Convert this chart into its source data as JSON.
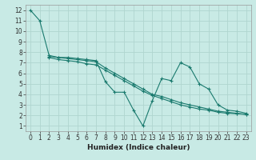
{
  "bg_color": "#c8eae5",
  "grid_color": "#b0d5cf",
  "line_color": "#1a7a6e",
  "line1": {
    "x": [
      0,
      1,
      2,
      3,
      4,
      5,
      6,
      7,
      8,
      9,
      10,
      11,
      12,
      13,
      14,
      15,
      16,
      17,
      18,
      19,
      20,
      21,
      22,
      23
    ],
    "y": [
      12,
      11,
      7.7,
      7.5,
      7.5,
      7.4,
      7.3,
      7.2,
      5.2,
      4.2,
      4.2,
      2.5,
      1.0,
      3.4,
      5.5,
      5.3,
      7.0,
      6.6,
      5.0,
      4.5,
      3.0,
      2.5,
      2.4,
      2.2
    ]
  },
  "line2": {
    "x": [
      2,
      3,
      4,
      5,
      6,
      7,
      8,
      9,
      10,
      11,
      12,
      13,
      14,
      15,
      16,
      17,
      18,
      19,
      20,
      21,
      22,
      23
    ],
    "y": [
      7.6,
      7.5,
      7.4,
      7.3,
      7.2,
      7.1,
      6.5,
      6.0,
      5.5,
      5.0,
      4.5,
      4.0,
      3.8,
      3.5,
      3.2,
      3.0,
      2.8,
      2.6,
      2.4,
      2.3,
      2.2,
      2.1
    ]
  },
  "line3": {
    "x": [
      2,
      3,
      4,
      5,
      6,
      7,
      8,
      9,
      10,
      11,
      12,
      13,
      14,
      15,
      16,
      17,
      18,
      19,
      20,
      21,
      22,
      23
    ],
    "y": [
      7.5,
      7.3,
      7.2,
      7.1,
      6.9,
      6.8,
      6.3,
      5.8,
      5.3,
      4.8,
      4.3,
      3.9,
      3.6,
      3.3,
      3.0,
      2.8,
      2.6,
      2.5,
      2.3,
      2.2,
      2.15,
      2.1
    ]
  },
  "xlabel": "Humidex (Indice chaleur)",
  "xlim": [
    -0.5,
    23.5
  ],
  "ylim": [
    0.5,
    12.5
  ],
  "xticks": [
    0,
    1,
    2,
    3,
    4,
    5,
    6,
    7,
    8,
    9,
    10,
    11,
    12,
    13,
    14,
    15,
    16,
    17,
    18,
    19,
    20,
    21,
    22,
    23
  ],
  "yticks": [
    1,
    2,
    3,
    4,
    5,
    6,
    7,
    8,
    9,
    10,
    11,
    12
  ],
  "marker": "+",
  "markersize": 3,
  "linewidth": 0.8,
  "xlabel_fontsize": 6.5,
  "tick_fontsize": 5.5
}
